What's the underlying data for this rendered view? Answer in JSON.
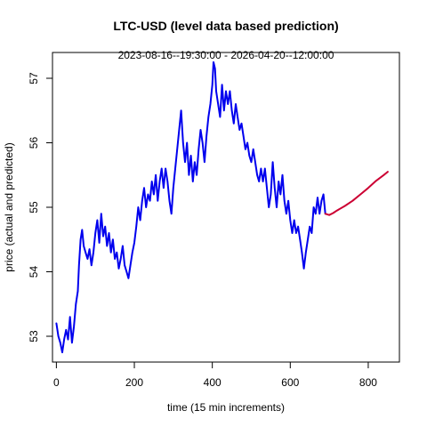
{
  "chart_data": {
    "type": "line",
    "title": "LTC-USD (level data based prediction)",
    "subtitle": "2023-08-16--19:30:00  -  2026-04-20--12:00:00",
    "xlabel": "time (15 min increments)",
    "ylabel": "price (actual and predicted)",
    "xlim": [
      -10,
      880
    ],
    "ylim": [
      52.6,
      57.4
    ],
    "x_ticks": [
      0,
      200,
      400,
      600,
      800
    ],
    "y_ticks": [
      53,
      54,
      55,
      56,
      57
    ],
    "grid": false,
    "legend": "none",
    "series": [
      {
        "role": "actual",
        "color": "#0000ee",
        "points": [
          [
            0,
            53.2
          ],
          [
            5,
            53.0
          ],
          [
            10,
            52.9
          ],
          [
            15,
            52.75
          ],
          [
            20,
            52.95
          ],
          [
            25,
            53.1
          ],
          [
            30,
            52.95
          ],
          [
            35,
            53.3
          ],
          [
            40,
            52.9
          ],
          [
            45,
            53.15
          ],
          [
            50,
            53.5
          ],
          [
            55,
            53.7
          ],
          [
            58,
            54.1
          ],
          [
            62,
            54.5
          ],
          [
            66,
            54.65
          ],
          [
            70,
            54.4
          ],
          [
            75,
            54.3
          ],
          [
            80,
            54.2
          ],
          [
            85,
            54.35
          ],
          [
            90,
            54.1
          ],
          [
            95,
            54.3
          ],
          [
            100,
            54.6
          ],
          [
            105,
            54.8
          ],
          [
            110,
            54.45
          ],
          [
            115,
            54.9
          ],
          [
            120,
            54.55
          ],
          [
            125,
            54.7
          ],
          [
            130,
            54.4
          ],
          [
            135,
            54.6
          ],
          [
            140,
            54.3
          ],
          [
            145,
            54.5
          ],
          [
            150,
            54.2
          ],
          [
            155,
            54.3
          ],
          [
            160,
            54.05
          ],
          [
            165,
            54.2
          ],
          [
            170,
            54.4
          ],
          [
            175,
            54.1
          ],
          [
            180,
            54.0
          ],
          [
            185,
            53.9
          ],
          [
            190,
            54.1
          ],
          [
            195,
            54.3
          ],
          [
            200,
            54.45
          ],
          [
            205,
            54.7
          ],
          [
            210,
            55.0
          ],
          [
            215,
            54.8
          ],
          [
            220,
            55.1
          ],
          [
            225,
            55.3
          ],
          [
            230,
            55.0
          ],
          [
            235,
            55.2
          ],
          [
            240,
            55.1
          ],
          [
            245,
            55.4
          ],
          [
            250,
            55.2
          ],
          [
            255,
            55.5
          ],
          [
            260,
            55.1
          ],
          [
            265,
            55.4
          ],
          [
            270,
            55.6
          ],
          [
            275,
            55.3
          ],
          [
            280,
            55.6
          ],
          [
            285,
            55.4
          ],
          [
            290,
            55.1
          ],
          [
            295,
            54.9
          ],
          [
            300,
            55.3
          ],
          [
            305,
            55.6
          ],
          [
            310,
            55.9
          ],
          [
            315,
            56.2
          ],
          [
            320,
            56.5
          ],
          [
            325,
            56.0
          ],
          [
            330,
            55.7
          ],
          [
            335,
            56.0
          ],
          [
            340,
            55.5
          ],
          [
            345,
            55.8
          ],
          [
            350,
            55.4
          ],
          [
            355,
            55.7
          ],
          [
            360,
            55.5
          ],
          [
            365,
            55.9
          ],
          [
            370,
            56.2
          ],
          [
            375,
            56.0
          ],
          [
            380,
            55.7
          ],
          [
            385,
            56.1
          ],
          [
            390,
            56.4
          ],
          [
            395,
            56.6
          ],
          [
            400,
            56.9
          ],
          [
            403,
            57.25
          ],
          [
            407,
            57.15
          ],
          [
            410,
            56.8
          ],
          [
            415,
            56.6
          ],
          [
            420,
            56.4
          ],
          [
            425,
            56.9
          ],
          [
            430,
            56.5
          ],
          [
            435,
            56.8
          ],
          [
            440,
            56.6
          ],
          [
            445,
            56.8
          ],
          [
            450,
            56.5
          ],
          [
            455,
            56.3
          ],
          [
            460,
            56.6
          ],
          [
            465,
            56.4
          ],
          [
            470,
            56.2
          ],
          [
            475,
            56.3
          ],
          [
            480,
            56.1
          ],
          [
            485,
            55.9
          ],
          [
            490,
            56.0
          ],
          [
            495,
            55.8
          ],
          [
            500,
            55.7
          ],
          [
            505,
            55.9
          ],
          [
            510,
            55.7
          ],
          [
            515,
            55.5
          ],
          [
            520,
            55.4
          ],
          [
            525,
            55.6
          ],
          [
            530,
            55.4
          ],
          [
            535,
            55.6
          ],
          [
            540,
            55.3
          ],
          [
            545,
            55.0
          ],
          [
            550,
            55.2
          ],
          [
            555,
            55.7
          ],
          [
            560,
            55.3
          ],
          [
            565,
            55.0
          ],
          [
            570,
            55.4
          ],
          [
            575,
            55.2
          ],
          [
            580,
            55.5
          ],
          [
            585,
            55.1
          ],
          [
            590,
            54.9
          ],
          [
            595,
            55.1
          ],
          [
            600,
            54.8
          ],
          [
            605,
            54.6
          ],
          [
            610,
            54.8
          ],
          [
            615,
            54.6
          ],
          [
            620,
            54.7
          ],
          [
            625,
            54.5
          ],
          [
            630,
            54.3
          ],
          [
            635,
            54.05
          ],
          [
            640,
            54.3
          ],
          [
            645,
            54.5
          ],
          [
            650,
            54.7
          ],
          [
            655,
            54.6
          ],
          [
            660,
            55.0
          ],
          [
            665,
            54.9
          ],
          [
            670,
            55.15
          ],
          [
            675,
            54.9
          ],
          [
            680,
            55.1
          ],
          [
            685,
            55.2
          ],
          [
            690,
            54.9
          ]
        ]
      },
      {
        "role": "predicted",
        "color": "#cc0033",
        "points": [
          [
            690,
            54.9
          ],
          [
            700,
            54.88
          ],
          [
            710,
            54.91
          ],
          [
            720,
            54.95
          ],
          [
            740,
            55.02
          ],
          [
            760,
            55.1
          ],
          [
            780,
            55.2
          ],
          [
            800,
            55.3
          ],
          [
            820,
            55.41
          ],
          [
            840,
            55.5
          ],
          [
            850,
            55.55
          ]
        ]
      }
    ]
  }
}
